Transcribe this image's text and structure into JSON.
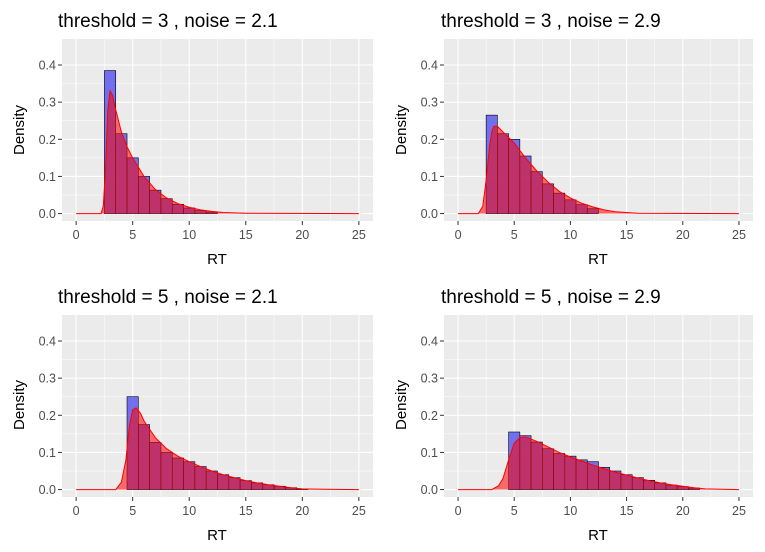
{
  "chart_data": [
    {
      "type": "histogram",
      "title": "threshold = 3 , noise = 2.1",
      "xlabel": "RT",
      "ylabel": "Density",
      "xlim": [
        -1.25,
        26.25
      ],
      "ylim": [
        -0.02,
        0.47
      ],
      "x_ticks": [
        0,
        5,
        10,
        15,
        20,
        25
      ],
      "y_ticks": [
        0.0,
        0.1,
        0.2,
        0.3,
        0.4
      ],
      "bin_width": 1,
      "bins": [
        {
          "x0": 2.5,
          "x1": 3.5,
          "density": 0.385
        },
        {
          "x0": 3.5,
          "x1": 4.5,
          "density": 0.215
        },
        {
          "x0": 4.5,
          "x1": 5.5,
          "density": 0.15
        },
        {
          "x0": 5.5,
          "x1": 6.5,
          "density": 0.1
        },
        {
          "x0": 6.5,
          "x1": 7.5,
          "density": 0.063
        },
        {
          "x0": 7.5,
          "x1": 8.5,
          "density": 0.04
        },
        {
          "x0": 8.5,
          "x1": 9.5,
          "density": 0.025
        },
        {
          "x0": 9.5,
          "x1": 10.5,
          "density": 0.015
        },
        {
          "x0": 10.5,
          "x1": 11.5,
          "density": 0.008
        },
        {
          "x0": 11.5,
          "x1": 12.5,
          "density": 0.004
        }
      ],
      "density_curve": {
        "x": [
          0,
          2.2,
          2.4,
          2.6,
          2.8,
          3.0,
          3.2,
          3.5,
          4.0,
          4.5,
          5.0,
          6.0,
          7.0,
          8.0,
          9.0,
          10.0,
          11.0,
          12.0,
          13.0,
          15.0,
          25.0
        ],
        "y": [
          0,
          0,
          0.02,
          0.12,
          0.28,
          0.33,
          0.32,
          0.28,
          0.22,
          0.18,
          0.15,
          0.1,
          0.065,
          0.042,
          0.027,
          0.017,
          0.01,
          0.006,
          0.003,
          0.001,
          0
        ]
      }
    },
    {
      "type": "histogram",
      "title": "threshold = 3 , noise = 2.9",
      "xlabel": "RT",
      "ylabel": "Density",
      "xlim": [
        -1.25,
        26.25
      ],
      "ylim": [
        -0.02,
        0.47
      ],
      "x_ticks": [
        0,
        5,
        10,
        15,
        20,
        25
      ],
      "y_ticks": [
        0.0,
        0.1,
        0.2,
        0.3,
        0.4
      ],
      "bin_width": 1,
      "bins": [
        {
          "x0": 2.5,
          "x1": 3.5,
          "density": 0.265
        },
        {
          "x0": 3.5,
          "x1": 4.5,
          "density": 0.215
        },
        {
          "x0": 4.5,
          "x1": 5.5,
          "density": 0.2
        },
        {
          "x0": 5.5,
          "x1": 6.5,
          "density": 0.155
        },
        {
          "x0": 6.5,
          "x1": 7.5,
          "density": 0.113
        },
        {
          "x0": 7.5,
          "x1": 8.5,
          "density": 0.08
        },
        {
          "x0": 8.5,
          "x1": 9.5,
          "density": 0.055
        },
        {
          "x0": 9.5,
          "x1": 10.5,
          "density": 0.037
        },
        {
          "x0": 10.5,
          "x1": 11.5,
          "density": 0.024
        },
        {
          "x0": 11.5,
          "x1": 12.5,
          "density": 0.013
        }
      ],
      "density_curve": {
        "x": [
          0,
          1.8,
          2.2,
          2.5,
          2.8,
          3.0,
          3.2,
          3.5,
          4.0,
          5.0,
          6.0,
          7.0,
          8.0,
          9.0,
          10.0,
          11.0,
          12.0,
          13.0,
          14.0,
          16.0,
          25.0
        ],
        "y": [
          0,
          0,
          0.02,
          0.09,
          0.18,
          0.22,
          0.235,
          0.235,
          0.22,
          0.19,
          0.15,
          0.115,
          0.085,
          0.06,
          0.042,
          0.028,
          0.018,
          0.01,
          0.005,
          0.001,
          0
        ]
      }
    },
    {
      "type": "histogram",
      "title": "threshold = 5 , noise = 2.1",
      "xlabel": "RT",
      "ylabel": "Density",
      "xlim": [
        -1.25,
        26.25
      ],
      "ylim": [
        -0.02,
        0.47
      ],
      "x_ticks": [
        0,
        5,
        10,
        15,
        20,
        25
      ],
      "y_ticks": [
        0.0,
        0.1,
        0.2,
        0.3,
        0.4
      ],
      "bin_width": 1,
      "bins": [
        {
          "x0": 4.5,
          "x1": 5.5,
          "density": 0.25
        },
        {
          "x0": 5.5,
          "x1": 6.5,
          "density": 0.175
        },
        {
          "x0": 6.5,
          "x1": 7.5,
          "density": 0.127
        },
        {
          "x0": 7.5,
          "x1": 8.5,
          "density": 0.1
        },
        {
          "x0": 8.5,
          "x1": 9.5,
          "density": 0.085
        },
        {
          "x0": 9.5,
          "x1": 10.5,
          "density": 0.075
        },
        {
          "x0": 10.5,
          "x1": 11.5,
          "density": 0.062
        },
        {
          "x0": 11.5,
          "x1": 12.5,
          "density": 0.05
        },
        {
          "x0": 12.5,
          "x1": 13.5,
          "density": 0.04
        },
        {
          "x0": 13.5,
          "x1": 14.5,
          "density": 0.032
        },
        {
          "x0": 14.5,
          "x1": 15.5,
          "density": 0.024
        },
        {
          "x0": 15.5,
          "x1": 16.5,
          "density": 0.018
        },
        {
          "x0": 16.5,
          "x1": 17.5,
          "density": 0.013
        },
        {
          "x0": 17.5,
          "x1": 18.5,
          "density": 0.009
        },
        {
          "x0": 18.5,
          "x1": 19.5,
          "density": 0.005
        },
        {
          "x0": 19.5,
          "x1": 20.5,
          "density": 0.002
        }
      ],
      "density_curve": {
        "x": [
          0,
          3.5,
          4.0,
          4.4,
          4.7,
          5.0,
          5.3,
          5.7,
          6.0,
          7.0,
          8.0,
          9.0,
          10.0,
          11.0,
          12.0,
          13.0,
          14.0,
          15.0,
          16.0,
          17.0,
          18.0,
          19.0,
          20.0,
          22.0,
          25.0
        ],
        "y": [
          0,
          0,
          0.02,
          0.08,
          0.17,
          0.215,
          0.22,
          0.205,
          0.185,
          0.14,
          0.11,
          0.09,
          0.075,
          0.062,
          0.05,
          0.04,
          0.032,
          0.024,
          0.018,
          0.013,
          0.009,
          0.005,
          0.002,
          0.001,
          0
        ]
      }
    },
    {
      "type": "histogram",
      "title": "threshold = 5 , noise = 2.9",
      "xlabel": "RT",
      "ylabel": "Density",
      "xlim": [
        -1.25,
        26.25
      ],
      "ylim": [
        -0.02,
        0.47
      ],
      "x_ticks": [
        0,
        5,
        10,
        15,
        20,
        25
      ],
      "y_ticks": [
        0.0,
        0.1,
        0.2,
        0.3,
        0.4
      ],
      "bin_width": 1,
      "bins": [
        {
          "x0": 4.5,
          "x1": 5.5,
          "density": 0.155
        },
        {
          "x0": 5.5,
          "x1": 6.5,
          "density": 0.145
        },
        {
          "x0": 6.5,
          "x1": 7.5,
          "density": 0.128
        },
        {
          "x0": 7.5,
          "x1": 8.5,
          "density": 0.11
        },
        {
          "x0": 8.5,
          "x1": 9.5,
          "density": 0.097
        },
        {
          "x0": 9.5,
          "x1": 10.5,
          "density": 0.09
        },
        {
          "x0": 10.5,
          "x1": 11.5,
          "density": 0.08
        },
        {
          "x0": 11.5,
          "x1": 12.5,
          "density": 0.075
        },
        {
          "x0": 12.5,
          "x1": 13.5,
          "density": 0.06
        },
        {
          "x0": 13.5,
          "x1": 14.5,
          "density": 0.05
        },
        {
          "x0": 14.5,
          "x1": 15.5,
          "density": 0.04
        },
        {
          "x0": 15.5,
          "x1": 16.5,
          "density": 0.032
        },
        {
          "x0": 16.5,
          "x1": 17.5,
          "density": 0.025
        },
        {
          "x0": 17.5,
          "x1": 18.5,
          "density": 0.018
        },
        {
          "x0": 18.5,
          "x1": 19.5,
          "density": 0.012
        },
        {
          "x0": 19.5,
          "x1": 20.5,
          "density": 0.008
        },
        {
          "x0": 20.5,
          "x1": 21.5,
          "density": 0.004
        }
      ],
      "density_curve": {
        "x": [
          0,
          3.0,
          3.6,
          4.0,
          4.5,
          5.0,
          5.5,
          6.0,
          7.0,
          8.0,
          9.0,
          10.0,
          11.0,
          12.0,
          13.0,
          14.0,
          15.0,
          16.0,
          17.0,
          18.0,
          19.0,
          20.0,
          21.0,
          22.0,
          25.0
        ],
        "y": [
          0,
          0,
          0.01,
          0.03,
          0.08,
          0.125,
          0.14,
          0.142,
          0.13,
          0.115,
          0.1,
          0.088,
          0.077,
          0.066,
          0.056,
          0.047,
          0.039,
          0.031,
          0.024,
          0.018,
          0.013,
          0.009,
          0.005,
          0.002,
          0
        ]
      }
    }
  ],
  "colors": {
    "panel_background": "#ebebeb",
    "grid": "#ffffff",
    "bar_fill": "#5a5af0",
    "bar_outline": "#000000",
    "density_fill": "#ff0000",
    "density_line": "#ff0000",
    "overlap_appearance": "#a8336e"
  }
}
